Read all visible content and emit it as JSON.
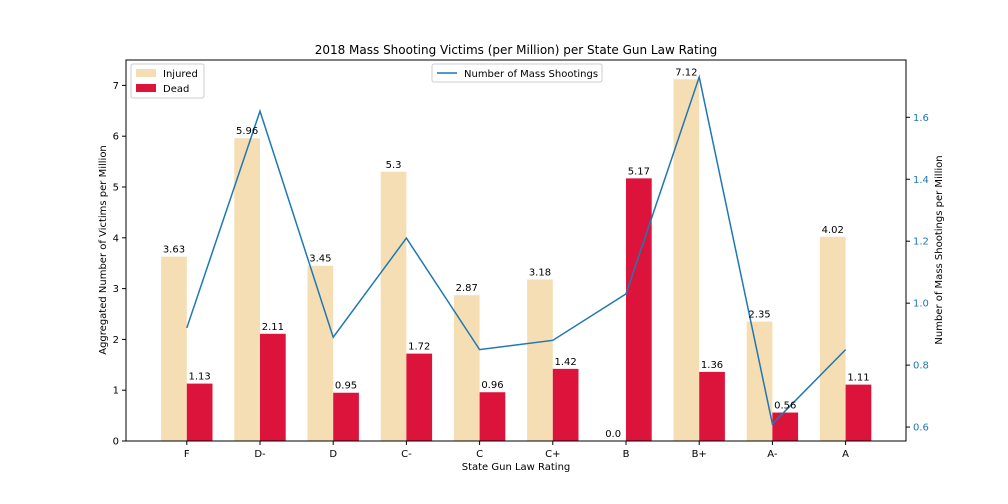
{
  "chart_data": {
    "type": "bar",
    "title": "2018 Mass Shooting Victims (per Million) per State Gun Law Rating",
    "xlabel": "State Gun Law Rating",
    "ylabel": "Aggregated Number of Victims per Million",
    "y2label": "Number of Mass Shootings per Million",
    "categories": [
      "F",
      "D-",
      "D",
      "C-",
      "C",
      "C+",
      "B",
      "B+",
      "A-",
      "A"
    ],
    "ylim": [
      0,
      7.5
    ],
    "yticks": [
      0,
      1,
      2,
      3,
      4,
      5,
      6,
      7
    ],
    "y2lim": [
      0.555,
      1.785
    ],
    "y2ticks": [
      0.6,
      0.8,
      1.0,
      1.2,
      1.4,
      1.6
    ],
    "series": [
      {
        "name": "Injured",
        "kind": "bar",
        "color": "#f5deb3",
        "values": [
          3.63,
          5.96,
          3.45,
          5.3,
          2.87,
          3.18,
          0.0,
          7.12,
          2.35,
          4.02
        ],
        "labels": [
          "3.63",
          "5.96",
          "3.45",
          "5.3",
          "2.87",
          "3.18",
          "0.0",
          "7.12",
          "2.35",
          "4.02"
        ]
      },
      {
        "name": "Dead",
        "kind": "bar",
        "color": "#dc143c",
        "values": [
          1.13,
          2.11,
          0.95,
          1.72,
          0.96,
          1.42,
          5.17,
          1.36,
          0.56,
          1.11
        ],
        "labels": [
          "1.13",
          "2.11",
          "0.95",
          "1.72",
          "0.96",
          "1.42",
          "5.17",
          "1.36",
          "0.56",
          "1.11"
        ]
      },
      {
        "name": "Number of Mass Shootings",
        "kind": "line",
        "axis": "right",
        "color": "#1f77b4",
        "values": [
          0.92,
          1.62,
          0.89,
          1.21,
          0.85,
          0.88,
          1.03,
          1.73,
          0.61,
          0.85
        ]
      }
    ],
    "legend": [
      {
        "position": "top-left",
        "entries": [
          "Injured",
          "Dead"
        ]
      },
      {
        "position": "top-center",
        "entries": [
          "Number of Mass Shootings"
        ]
      }
    ],
    "grid": false
  }
}
